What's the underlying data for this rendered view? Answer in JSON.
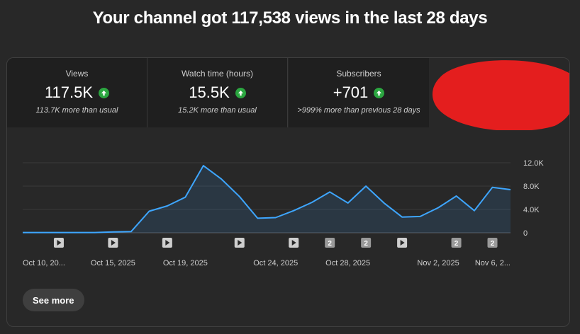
{
  "headline": "Your channel got 117,538 views in the last 28 days",
  "colors": {
    "accent_line": "#3ea6ff",
    "up_arrow": "#2ba640",
    "redaction": "#e41e1e"
  },
  "metrics": [
    {
      "label": "Views",
      "value": "117.5K",
      "compare": "113.7K more than usual",
      "trend_icon": "arrow-up-icon"
    },
    {
      "label": "Watch time (hours)",
      "value": "15.5K",
      "compare": "15.2K more than usual",
      "trend_icon": "arrow-up-icon"
    },
    {
      "label": "Subscribers",
      "value": "+701",
      "compare": ">999% more than previous 28 days",
      "trend_icon": "arrow-up-icon"
    }
  ],
  "chart_data": {
    "type": "area",
    "ylim": [
      0,
      12000
    ],
    "y_ticks": [
      0,
      4000,
      8000,
      12000
    ],
    "y_tick_labels": [
      "0",
      "4.0K",
      "8.0K",
      "12.0K"
    ],
    "x": [
      "Oct 10, 2025",
      "Oct 11, 2025",
      "Oct 12, 2025",
      "Oct 13, 2025",
      "Oct 14, 2025",
      "Oct 15, 2025",
      "Oct 16, 2025",
      "Oct 17, 2025",
      "Oct 18, 2025",
      "Oct 19, 2025",
      "Oct 20, 2025",
      "Oct 21, 2025",
      "Oct 22, 2025",
      "Oct 23, 2025",
      "Oct 24, 2025",
      "Oct 25, 2025",
      "Oct 26, 2025",
      "Oct 27, 2025",
      "Oct 28, 2025",
      "Oct 29, 2025",
      "Oct 30, 2025",
      "Oct 31, 2025",
      "Nov 1, 2025",
      "Nov 2, 2025",
      "Nov 3, 2025",
      "Nov 4, 2025",
      "Nov 5, 2025",
      "Nov 6, 2025"
    ],
    "values": [
      50,
      50,
      50,
      50,
      50,
      150,
      200,
      3700,
      4600,
      6100,
      11500,
      9200,
      6200,
      2500,
      2600,
      3800,
      5200,
      7000,
      5100,
      8000,
      5100,
      2700,
      2800,
      4300,
      6300,
      3800,
      7800,
      7400
    ],
    "x_tick_labels": [
      {
        "index": 0,
        "label": "Oct 10, 20..."
      },
      {
        "index": 5,
        "label": "Oct 15, 2025"
      },
      {
        "index": 9,
        "label": "Oct 19, 2025"
      },
      {
        "index": 14,
        "label": "Oct 24, 2025"
      },
      {
        "index": 18,
        "label": "Oct 28, 2025"
      },
      {
        "index": 23,
        "label": "Nov 2, 2025"
      },
      {
        "index": 27,
        "label": "Nov 6, 2..."
      }
    ],
    "markers": [
      {
        "index": 2,
        "kind": "video",
        "label": ""
      },
      {
        "index": 5,
        "kind": "video",
        "label": ""
      },
      {
        "index": 8,
        "kind": "video",
        "label": ""
      },
      {
        "index": 12,
        "kind": "video",
        "label": ""
      },
      {
        "index": 15,
        "kind": "video",
        "label": ""
      },
      {
        "index": 17,
        "kind": "count",
        "label": "2"
      },
      {
        "index": 19,
        "kind": "count",
        "label": "2"
      },
      {
        "index": 21,
        "kind": "video",
        "label": ""
      },
      {
        "index": 24,
        "kind": "count",
        "label": "2"
      },
      {
        "index": 26,
        "kind": "count",
        "label": "2"
      }
    ]
  },
  "see_more_label": "See more"
}
